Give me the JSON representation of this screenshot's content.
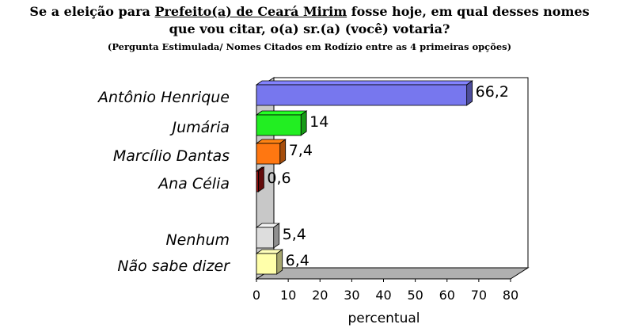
{
  "header": {
    "title_pre": "Se a eleição para ",
    "title_underlined": "Prefeito(a) de Ceará Mirim",
    "title_post": " fosse hoje, em qual desses nomes",
    "title_line2": "que vou citar, o(a) sr.(a) (você) votaria?",
    "subtitle": "(Pergunta Estimulada/ Nomes Citados em Rodízio entre as 4 primeiras opções)"
  },
  "chart_data": {
    "type": "bar",
    "orientation": "horizontal",
    "categories": [
      "Antônio Henrique",
      "Jumária",
      "Marcílio Dantas",
      "Ana Célia",
      "Nenhum",
      "Não sabe dizer"
    ],
    "values": [
      66.2,
      14,
      7.4,
      0.6,
      5.4,
      6.4
    ],
    "value_labels": [
      "66,2",
      "14",
      "7,4",
      "0,6",
      "5,4",
      "6,4"
    ],
    "colors": [
      "#7777ee",
      "#22ee22",
      "#ff7711",
      "#991111",
      "#dddddd",
      "#ffffaa"
    ],
    "xlabel": "percentual",
    "xlim": [
      0,
      80
    ],
    "xticks": [
      "0",
      "10",
      "20",
      "30",
      "40",
      "50",
      "60",
      "70",
      "80"
    ],
    "grid": false,
    "legend": "none",
    "style": "3d"
  }
}
